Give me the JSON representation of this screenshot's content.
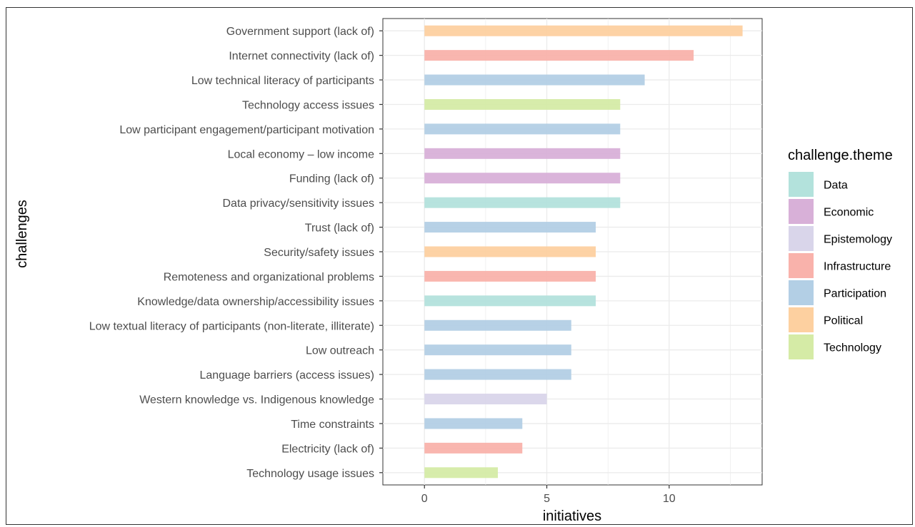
{
  "chart_data": {
    "type": "bar",
    "orientation": "horizontal",
    "xlabel": "initiatives",
    "ylabel": "challenges",
    "xlim": [
      -1.7,
      13.8
    ],
    "xticks": [
      0,
      5,
      10
    ],
    "grid": true,
    "legend": {
      "title": "challenge.theme",
      "placement": "right",
      "entries": [
        {
          "name": "Data",
          "color": "#b3e2dc"
        },
        {
          "name": "Economic",
          "color": "#d8b0d8"
        },
        {
          "name": "Epistemology",
          "color": "#d9d5ea"
        },
        {
          "name": "Infrastructure",
          "color": "#f9b2ab"
        },
        {
          "name": "Participation",
          "color": "#b3cfe5"
        },
        {
          "name": "Political",
          "color": "#fdd0a0"
        },
        {
          "name": "Technology",
          "color": "#d5eba6"
        }
      ]
    },
    "bars": [
      {
        "category": "Government support (lack of)",
        "value": 13,
        "theme": "Political"
      },
      {
        "category": "Internet connectivity (lack of)",
        "value": 11,
        "theme": "Infrastructure"
      },
      {
        "category": "Low technical literacy of participants",
        "value": 9,
        "theme": "Participation"
      },
      {
        "category": "Technology access issues",
        "value": 8,
        "theme": "Technology"
      },
      {
        "category": "Low participant engagement/participant motivation",
        "value": 8,
        "theme": "Participation"
      },
      {
        "category": "Local economy – low income",
        "value": 8,
        "theme": "Economic"
      },
      {
        "category": "Funding (lack of)",
        "value": 8,
        "theme": "Economic"
      },
      {
        "category": "Data privacy/sensitivity issues",
        "value": 8,
        "theme": "Data"
      },
      {
        "category": "Trust (lack of)",
        "value": 7,
        "theme": "Participation"
      },
      {
        "category": "Security/safety issues",
        "value": 7,
        "theme": "Political"
      },
      {
        "category": "Remoteness and organizational problems",
        "value": 7,
        "theme": "Infrastructure"
      },
      {
        "category": "Knowledge/data ownership/accessibility issues",
        "value": 7,
        "theme": "Data"
      },
      {
        "category": "Low textual literacy of participants (non-literate, illiterate)",
        "value": 6,
        "theme": "Participation"
      },
      {
        "category": "Low outreach",
        "value": 6,
        "theme": "Participation"
      },
      {
        "category": "Language barriers (access issues)",
        "value": 6,
        "theme": "Participation"
      },
      {
        "category": "Western knowledge vs. Indigenous knowledge",
        "value": 5,
        "theme": "Epistemology"
      },
      {
        "category": "Time constraints",
        "value": 4,
        "theme": "Participation"
      },
      {
        "category": "Electricity (lack of)",
        "value": 4,
        "theme": "Infrastructure"
      },
      {
        "category": "Technology usage issues",
        "value": 3,
        "theme": "Technology"
      }
    ]
  }
}
